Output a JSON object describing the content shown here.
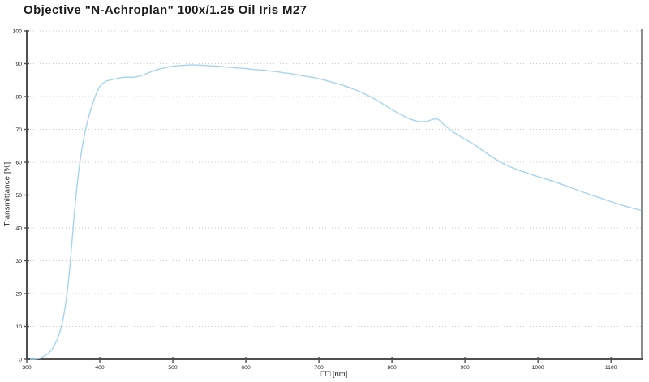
{
  "chart_data": {
    "type": "line",
    "title": "Objective \"N-Achroplan\" 100x/1.25 Oil Iris M27",
    "xlabel": "□□ [nm]",
    "ylabel": "Transmittance [%]",
    "x_ticks": [
      300,
      400,
      500,
      600,
      700,
      800,
      900,
      1000,
      1100
    ],
    "y_ticks": [
      0,
      10,
      20,
      30,
      40,
      50,
      60,
      70,
      80,
      90,
      100
    ],
    "xlim": [
      300,
      1142
    ],
    "ylim": [
      0,
      100
    ],
    "grid": "horizontal-dotted",
    "legend": "none",
    "colors": {
      "curve": "#a5d4f0",
      "axis": "#4f4f4f",
      "grid": "#c9c9c9",
      "tick_text": "#1a1a1a"
    },
    "series": [
      {
        "name": "transmittance",
        "color": "#a5d4f0",
        "points": [
          [
            305,
            0
          ],
          [
            310,
            0
          ],
          [
            314,
            0.1
          ],
          [
            318,
            0.3
          ],
          [
            322,
            0.7
          ],
          [
            326,
            1.2
          ],
          [
            330,
            1.9
          ],
          [
            334,
            2.9
          ],
          [
            338,
            4.3
          ],
          [
            342,
            6.2
          ],
          [
            346,
            8.8
          ],
          [
            350,
            12.5
          ],
          [
            353,
            16.5
          ],
          [
            356,
            21.5
          ],
          [
            359,
            28
          ],
          [
            362,
            36
          ],
          [
            365,
            44
          ],
          [
            368,
            51
          ],
          [
            371,
            57
          ],
          [
            374,
            62
          ],
          [
            377,
            66
          ],
          [
            380,
            69.5
          ],
          [
            384,
            73.2
          ],
          [
            388,
            76.3
          ],
          [
            392,
            79
          ],
          [
            396,
            81.3
          ],
          [
            400,
            83.1
          ],
          [
            404,
            84
          ],
          [
            409,
            84.7
          ],
          [
            414,
            85
          ],
          [
            420,
            85.3
          ],
          [
            426,
            85.6
          ],
          [
            432,
            85.8
          ],
          [
            438,
            85.9
          ],
          [
            444,
            85.8
          ],
          [
            450,
            86
          ],
          [
            456,
            86.3
          ],
          [
            462,
            86.8
          ],
          [
            469,
            87.4
          ],
          [
            476,
            88
          ],
          [
            484,
            88.5
          ],
          [
            492,
            88.9
          ],
          [
            500,
            89.2
          ],
          [
            508,
            89.4
          ],
          [
            516,
            89.5
          ],
          [
            524,
            89.6
          ],
          [
            532,
            89.6
          ],
          [
            540,
            89.5
          ],
          [
            548,
            89.4
          ],
          [
            556,
            89.3
          ],
          [
            564,
            89.2
          ],
          [
            572,
            89
          ],
          [
            580,
            88.9
          ],
          [
            588,
            88.7
          ],
          [
            596,
            88.6
          ],
          [
            604,
            88.4
          ],
          [
            612,
            88.2
          ],
          [
            620,
            88.1
          ],
          [
            628,
            87.9
          ],
          [
            636,
            87.7
          ],
          [
            644,
            87.5
          ],
          [
            652,
            87.2
          ],
          [
            660,
            87
          ],
          [
            668,
            86.7
          ],
          [
            676,
            86.4
          ],
          [
            684,
            86.1
          ],
          [
            692,
            85.8
          ],
          [
            700,
            85.4
          ],
          [
            708,
            85
          ],
          [
            716,
            84.5
          ],
          [
            724,
            84
          ],
          [
            732,
            83.5
          ],
          [
            740,
            82.9
          ],
          [
            748,
            82.2
          ],
          [
            756,
            81.5
          ],
          [
            764,
            80.7
          ],
          [
            772,
            79.8
          ],
          [
            780,
            78.8
          ],
          [
            788,
            77.7
          ],
          [
            796,
            76.6
          ],
          [
            804,
            75.5
          ],
          [
            812,
            74.5
          ],
          [
            820,
            73.6
          ],
          [
            828,
            72.9
          ],
          [
            836,
            72.4
          ],
          [
            843,
            72.3
          ],
          [
            849,
            72.5
          ],
          [
            855,
            73
          ],
          [
            860,
            73.2
          ],
          [
            864,
            73
          ],
          [
            868,
            72.2
          ],
          [
            872,
            71.3
          ],
          [
            876,
            70.5
          ],
          [
            880,
            69.8
          ],
          [
            886,
            68.9
          ],
          [
            892,
            68.1
          ],
          [
            900,
            67
          ],
          [
            908,
            66
          ],
          [
            916,
            64.9
          ],
          [
            924,
            63.6
          ],
          [
            932,
            62.4
          ],
          [
            940,
            61.2
          ],
          [
            948,
            60.1
          ],
          [
            956,
            59.2
          ],
          [
            964,
            58.4
          ],
          [
            972,
            57.7
          ],
          [
            980,
            57.1
          ],
          [
            990,
            56.3
          ],
          [
            1000,
            55.6
          ],
          [
            1012,
            54.8
          ],
          [
            1024,
            53.9
          ],
          [
            1036,
            53
          ],
          [
            1048,
            52
          ],
          [
            1060,
            51
          ],
          [
            1072,
            50.1
          ],
          [
            1084,
            49.2
          ],
          [
            1096,
            48.3
          ],
          [
            1108,
            47.4
          ],
          [
            1120,
            46.6
          ],
          [
            1131,
            45.9
          ],
          [
            1141,
            45.3
          ]
        ]
      }
    ]
  }
}
